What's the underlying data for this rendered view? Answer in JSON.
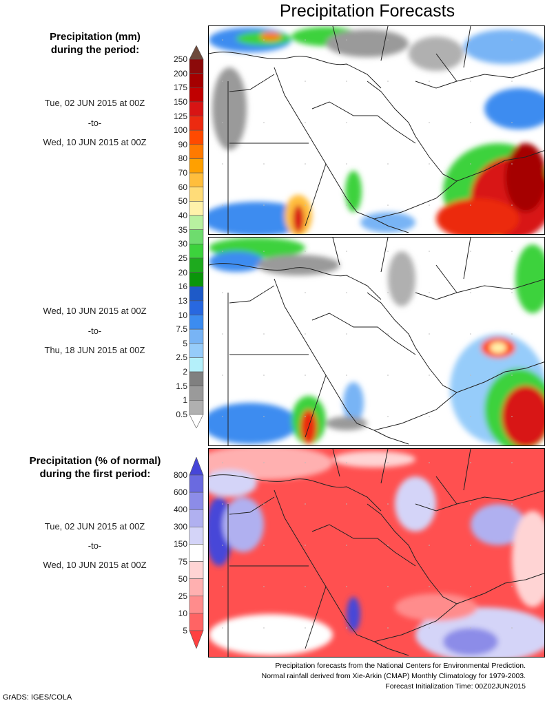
{
  "title": "Precipitation Forecasts",
  "legend1": {
    "heading": [
      "Precipitation (mm)",
      "during the period:"
    ],
    "labels": [
      "250",
      "200",
      "175",
      "150",
      "125",
      "100",
      "90",
      "80",
      "70",
      "60",
      "50",
      "40",
      "35",
      "30",
      "25",
      "20",
      "16",
      "13",
      "10",
      "7.5",
      "5",
      "2.5",
      "2",
      "1.5",
      "1",
      "0.5"
    ],
    "colors": [
      "#8c0a0a",
      "#a50000",
      "#c00000",
      "#d81414",
      "#ec2a10",
      "#ff4a00",
      "#ff7a00",
      "#ffa000",
      "#ffbe3c",
      "#ffdc78",
      "#fff2aa",
      "#b8f0a0",
      "#6edc6e",
      "#3cd23c",
      "#1eaa1e",
      "#0a960a",
      "#1e5ac8",
      "#2868e0",
      "#3c8cf0",
      "#78b4f5",
      "#96ccfa",
      "#b4f0fa",
      "#808080",
      "#9a9a9a",
      "#b0b0b0",
      "#c4c4c4"
    ],
    "top_color": "#6e4a3c",
    "bottom_color": "#ffffff"
  },
  "legend2": {
    "heading": [
      "Precipitation (% of normal)",
      "during the first period:"
    ],
    "labels": [
      "800",
      "600",
      "400",
      "300",
      "150",
      "75",
      "50",
      "25",
      "10",
      "5"
    ],
    "colors": [
      "#6a6ae0",
      "#8c8ce8",
      "#b0b0f0",
      "#d4d4f8",
      "#ffffff",
      "#ffd4d4",
      "#ffb0b0",
      "#ff8c8c",
      "#ff6464"
    ],
    "top_color": "#4646d8",
    "bottom_color": "#ff4040"
  },
  "periods": [
    {
      "start": "Tue, 02 JUN 2015 at 00Z",
      "sep": "-to-",
      "end": "Wed, 10 JUN 2015 at 00Z"
    },
    {
      "start": "Wed, 10 JUN 2015 at 00Z",
      "sep": "-to-",
      "end": "Thu, 18 JUN 2015 at 00Z"
    },
    {
      "start": "Tue, 02 JUN 2015 at 00Z",
      "sep": "-to-",
      "end": "Wed, 10 JUN 2015 at 00Z"
    }
  ],
  "footer": [
    "Precipitation forecasts from the National Centers for Environmental Prediction.",
    "Normal rainfall derived from Xie-Arkin (CMAP) Monthly Climatology for 1979-2003.",
    "Forecast Initialization Time: 00Z02JUN2015"
  ],
  "credit": "GrADS: IGES/COLA"
}
